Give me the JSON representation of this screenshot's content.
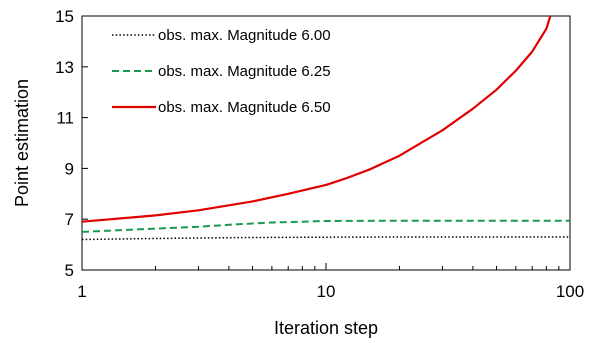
{
  "chart_data": {
    "type": "line",
    "xlabel": "Iteration step",
    "ylabel": "Point estimation",
    "xscale": "log",
    "xlim": [
      1,
      100
    ],
    "ylim": [
      5,
      15
    ],
    "x_ticks": [
      1,
      10,
      100
    ],
    "x_tick_labels": [
      "1",
      "10",
      "100"
    ],
    "y_ticks": [
      5,
      7,
      9,
      11,
      13,
      15
    ],
    "y_tick_labels": [
      "5",
      "7",
      "9",
      "11",
      "13",
      "15"
    ],
    "grid": false,
    "legend_position": "top-left",
    "series": [
      {
        "name": "obs. max. Magnitude 6.00",
        "color": "#000000",
        "style": "dotted",
        "x": [
          1,
          2,
          3,
          5,
          10,
          20,
          50,
          100
        ],
        "y": [
          6.2,
          6.24,
          6.26,
          6.28,
          6.29,
          6.3,
          6.3,
          6.3
        ]
      },
      {
        "name": "obs. max. Magnitude 6.25",
        "color": "#1a9a50",
        "style": "dashed",
        "x": [
          1,
          2,
          3,
          4,
          5,
          6,
          8,
          9,
          10,
          20,
          50,
          100
        ],
        "y": [
          6.5,
          6.63,
          6.7,
          6.78,
          6.83,
          6.87,
          6.9,
          6.92,
          6.93,
          6.94,
          6.94,
          6.94
        ]
      },
      {
        "name": "obs. max. Magnitude 6.50",
        "color": "#e00000",
        "style": "solid",
        "x": [
          1,
          2,
          3,
          5,
          7,
          10,
          12,
          15,
          20,
          25,
          30,
          40,
          50,
          60,
          70,
          80,
          83
        ],
        "y": [
          6.9,
          7.15,
          7.35,
          7.7,
          8.0,
          8.35,
          8.6,
          8.95,
          9.5,
          10.05,
          10.5,
          11.35,
          12.1,
          12.85,
          13.6,
          14.5,
          15.0
        ]
      }
    ]
  }
}
